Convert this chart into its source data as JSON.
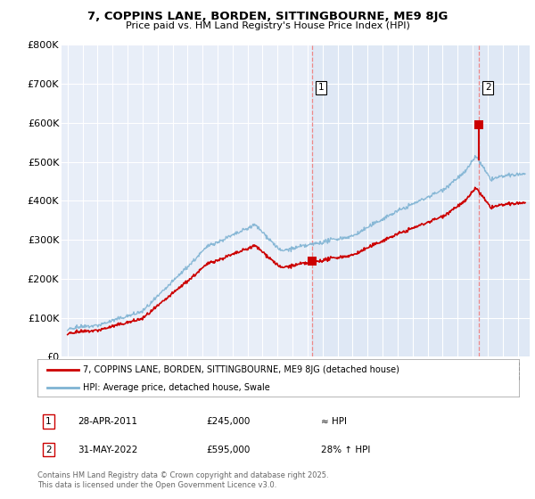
{
  "title_line1": "7, COPPINS LANE, BORDEN, SITTINGBOURNE, ME9 8JG",
  "title_line2": "Price paid vs. HM Land Registry's House Price Index (HPI)",
  "background_color": "#ffffff",
  "plot_bg_color": "#e8eef8",
  "plot_bg_color_left": "#dce4f0",
  "grid_color": "#ffffff",
  "legend_line1": "7, COPPINS LANE, BORDEN, SITTINGBOURNE, ME9 8JG (detached house)",
  "legend_line2": "HPI: Average price, detached house, Swale",
  "sale1_label": "1",
  "sale1_date": "28-APR-2011",
  "sale1_price": "£245,000",
  "sale1_hpi": "≈ HPI",
  "sale2_label": "2",
  "sale2_date": "31-MAY-2022",
  "sale2_price": "£595,000",
  "sale2_hpi": "28% ↑ HPI",
  "footer": "Contains HM Land Registry data © Crown copyright and database right 2025.\nThis data is licensed under the Open Government Licence v3.0.",
  "hpi_color": "#7fb3d3",
  "price_color": "#cc0000",
  "vline_color": "#ee8888",
  "ylim": [
    0,
    800000
  ],
  "yticks": [
    0,
    100000,
    200000,
    300000,
    400000,
    500000,
    600000,
    700000,
    800000
  ],
  "ytick_labels": [
    "£0",
    "£100K",
    "£200K",
    "£300K",
    "£400K",
    "£500K",
    "£600K",
    "£700K",
    "£800K"
  ],
  "sale1_x": 2011.32,
  "sale1_y": 245000,
  "sale2_x": 2022.42,
  "sale2_y": 595000,
  "xmin": 1994.6,
  "xmax": 2025.8
}
